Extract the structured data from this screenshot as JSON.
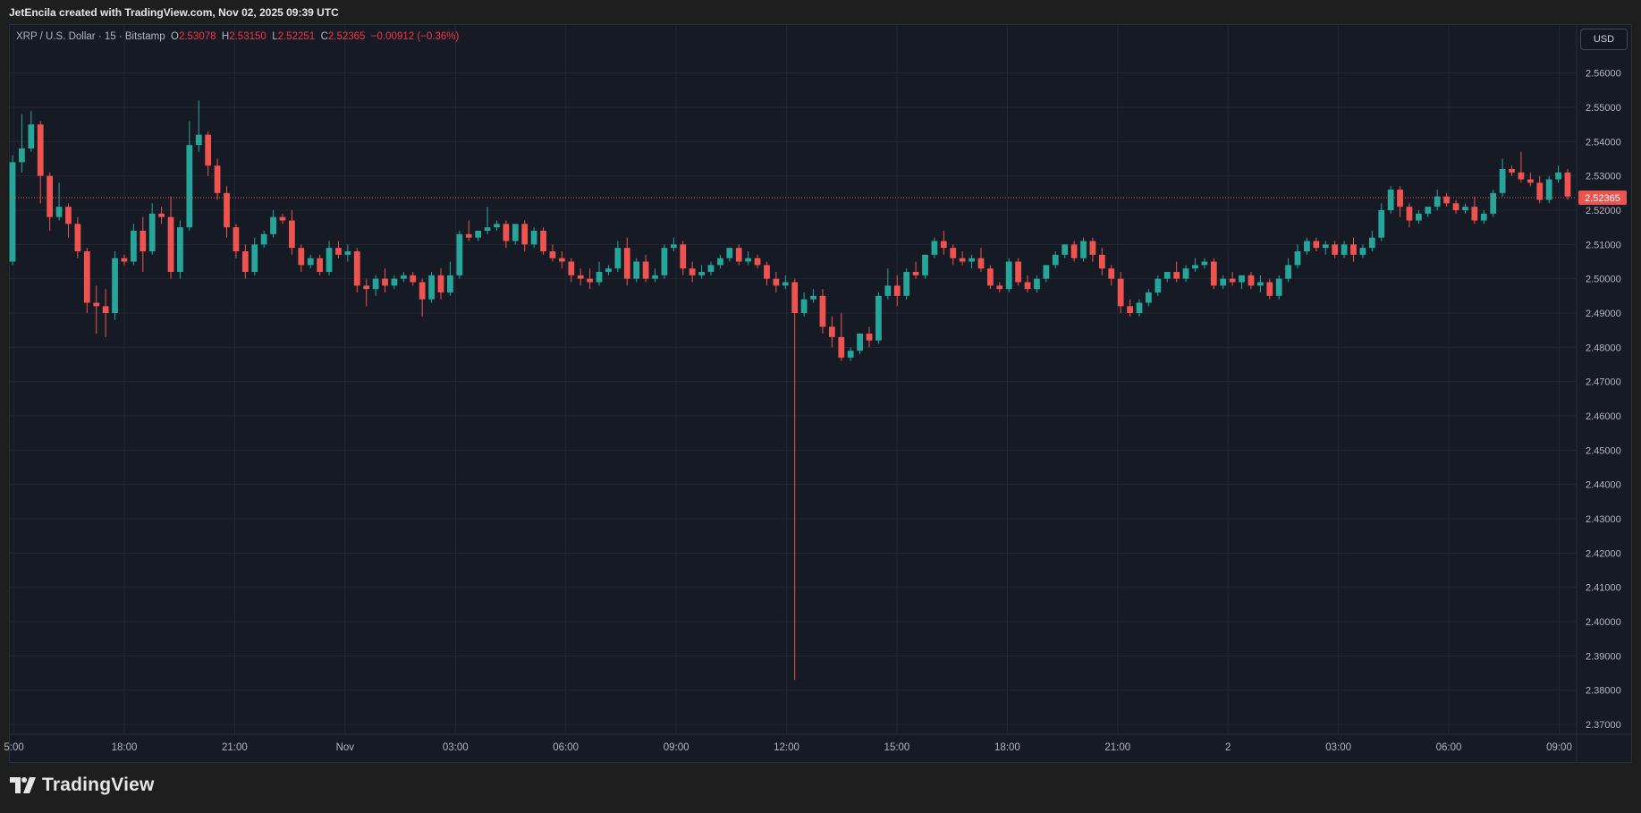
{
  "header": {
    "credit": "JetEncila created with TradingView.com, Nov 02, 2025 09:39 UTC"
  },
  "legend": {
    "symbol": "XRP / U.S. Dollar · 15 · Bitstamp",
    "open_label": "O",
    "open": "2.53078",
    "high_label": "H",
    "high": "2.53150",
    "low_label": "L",
    "low": "2.52251",
    "close_label": "C",
    "close": "2.52365",
    "change": "−0.00912 (−0.36%)"
  },
  "currency_button": "USD",
  "footer": {
    "brand": "TradingView",
    "logo_icon": "tradingview-logo-icon"
  },
  "colors": {
    "background": "#161a25",
    "up": "#26a69a",
    "down": "#ef5350",
    "grid": "#232734",
    "text": "#b2b5be"
  },
  "chart_data": {
    "type": "candlestick",
    "symbol": "XRP / U.S. Dollar",
    "interval": "15",
    "exchange": "Bitstamp",
    "current_price": 2.52365,
    "current_price_label": "2.52365",
    "ylim": [
      2.366,
      2.572
    ],
    "y_ticks": [
      "2.56000",
      "2.55000",
      "2.54000",
      "2.53000",
      "2.52000",
      "2.51000",
      "2.50000",
      "2.49000",
      "2.48000",
      "2.47000",
      "2.46000",
      "2.45000",
      "2.44000",
      "2.43000",
      "2.42000",
      "2.41000",
      "2.40000",
      "2.39000",
      "2.38000",
      "2.37000"
    ],
    "x_ticks": [
      {
        "label": "5:00",
        "hours": 15
      },
      {
        "label": "18:00",
        "hours": 18
      },
      {
        "label": "21:00",
        "hours": 21
      },
      {
        "label": "Nov",
        "hours": 24
      },
      {
        "label": "03:00",
        "hours": 27
      },
      {
        "label": "06:00",
        "hours": 30
      },
      {
        "label": "09:00",
        "hours": 33
      },
      {
        "label": "12:00",
        "hours": 36
      },
      {
        "label": "15:00",
        "hours": 39
      },
      {
        "label": "18:00",
        "hours": 42
      },
      {
        "label": "21:00",
        "hours": 45
      },
      {
        "label": "2",
        "hours": 48
      },
      {
        "label": "03:00",
        "hours": 51
      },
      {
        "label": "06:00",
        "hours": 54
      },
      {
        "label": "09:00",
        "hours": 57
      }
    ],
    "candles": [
      [
        2.505,
        2.536,
        2.534,
        2.504
      ],
      [
        2.534,
        2.548,
        2.538,
        2.531
      ],
      [
        2.538,
        2.549,
        2.545,
        2.537
      ],
      [
        2.545,
        2.546,
        2.53,
        2.522
      ],
      [
        2.53,
        2.531,
        2.518,
        2.514
      ],
      [
        2.518,
        2.528,
        2.521,
        2.517
      ],
      [
        2.521,
        2.522,
        2.516,
        2.512
      ],
      [
        2.516,
        2.518,
        2.508,
        2.506
      ],
      [
        2.508,
        2.509,
        2.493,
        2.49
      ],
      [
        2.493,
        2.498,
        2.492,
        2.484
      ],
      [
        2.492,
        2.497,
        2.49,
        2.483
      ],
      [
        2.49,
        2.508,
        2.506,
        2.488
      ],
      [
        2.506,
        2.507,
        2.505,
        2.504
      ],
      [
        2.505,
        2.516,
        2.514,
        2.504
      ],
      [
        2.514,
        2.518,
        2.508,
        2.502
      ],
      [
        2.508,
        2.522,
        2.519,
        2.507
      ],
      [
        2.519,
        2.521,
        2.518,
        2.516
      ],
      [
        2.518,
        2.524,
        2.502,
        2.5
      ],
      [
        2.502,
        2.517,
        2.515,
        2.5
      ],
      [
        2.515,
        2.546,
        2.539,
        2.514
      ],
      [
        2.539,
        2.552,
        2.542,
        2.537
      ],
      [
        2.542,
        2.543,
        2.533,
        2.53
      ],
      [
        2.533,
        2.535,
        2.525,
        2.523
      ],
      [
        2.525,
        2.527,
        2.515,
        2.512
      ],
      [
        2.515,
        2.516,
        2.508,
        2.506
      ],
      [
        2.508,
        2.51,
        2.502,
        2.5
      ],
      [
        2.502,
        2.512,
        2.51,
        2.501
      ],
      [
        2.51,
        2.514,
        2.513,
        2.509
      ],
      [
        2.513,
        2.52,
        2.518,
        2.512
      ],
      [
        2.518,
        2.519,
        2.517,
        2.516
      ],
      [
        2.517,
        2.52,
        2.509,
        2.507
      ],
      [
        2.509,
        2.51,
        2.504,
        2.502
      ],
      [
        2.504,
        2.507,
        2.506,
        2.503
      ],
      [
        2.506,
        2.507,
        2.502,
        2.501
      ],
      [
        2.502,
        2.511,
        2.509,
        2.501
      ],
      [
        2.509,
        2.511,
        2.507,
        2.506
      ],
      [
        2.507,
        2.51,
        2.508,
        2.505
      ],
      [
        2.508,
        2.509,
        2.498,
        2.496
      ],
      [
        2.498,
        2.5,
        2.497,
        2.492
      ],
      [
        2.497,
        2.501,
        2.5,
        2.495
      ],
      [
        2.5,
        2.503,
        2.498,
        2.496
      ],
      [
        2.498,
        2.501,
        2.5,
        2.497
      ],
      [
        2.5,
        2.502,
        2.501,
        2.499
      ],
      [
        2.501,
        2.502,
        2.499,
        2.498
      ],
      [
        2.499,
        2.5,
        2.494,
        2.489
      ],
      [
        2.494,
        2.502,
        2.501,
        2.493
      ],
      [
        2.501,
        2.503,
        2.496,
        2.494
      ],
      [
        2.496,
        2.505,
        2.501,
        2.495
      ],
      [
        2.501,
        2.514,
        2.513,
        2.5
      ],
      [
        2.513,
        2.517,
        2.512,
        2.511
      ],
      [
        2.512,
        2.514,
        2.514,
        2.511
      ],
      [
        2.514,
        2.521,
        2.515,
        2.513
      ],
      [
        2.515,
        2.517,
        2.516,
        2.514
      ],
      [
        2.516,
        2.517,
        2.511,
        2.509
      ],
      [
        2.511,
        2.512,
        2.516,
        2.51
      ],
      [
        2.516,
        2.517,
        2.51,
        2.508
      ],
      [
        2.51,
        2.515,
        2.514,
        2.509
      ],
      [
        2.514,
        2.515,
        2.508,
        2.507
      ],
      [
        2.508,
        2.51,
        2.506,
        2.505
      ],
      [
        2.506,
        2.508,
        2.505,
        2.503
      ],
      [
        2.505,
        2.506,
        2.501,
        2.499
      ],
      [
        2.501,
        2.503,
        2.5,
        2.498
      ],
      [
        2.5,
        2.503,
        2.499,
        2.497
      ],
      [
        2.499,
        2.505,
        2.502,
        2.498
      ],
      [
        2.502,
        2.504,
        2.503,
        2.501
      ],
      [
        2.503,
        2.511,
        2.509,
        2.502
      ],
      [
        2.509,
        2.512,
        2.5,
        2.498
      ],
      [
        2.5,
        2.506,
        2.505,
        2.499
      ],
      [
        2.505,
        2.507,
        2.5,
        2.499
      ],
      [
        2.5,
        2.503,
        2.501,
        2.499
      ],
      [
        2.501,
        2.51,
        2.509,
        2.5
      ],
      [
        2.509,
        2.512,
        2.51,
        2.508
      ],
      [
        2.51,
        2.511,
        2.503,
        2.501
      ],
      [
        2.503,
        2.505,
        2.501,
        2.499
      ],
      [
        2.501,
        2.504,
        2.502,
        2.5
      ],
      [
        2.502,
        2.505,
        2.504,
        2.501
      ],
      [
        2.504,
        2.507,
        2.506,
        2.503
      ],
      [
        2.506,
        2.509,
        2.509,
        2.505
      ],
      [
        2.509,
        2.51,
        2.505,
        2.504
      ],
      [
        2.505,
        2.508,
        2.506,
        2.504
      ],
      [
        2.506,
        2.507,
        2.504,
        2.503
      ],
      [
        2.504,
        2.505,
        2.5,
        2.498
      ],
      [
        2.5,
        2.502,
        2.498,
        2.496
      ],
      [
        2.498,
        2.501,
        2.499,
        2.497
      ],
      [
        2.499,
        2.5,
        2.49,
        2.383
      ],
      [
        2.49,
        2.496,
        2.494,
        2.489
      ],
      [
        2.494,
        2.497,
        2.495,
        2.493
      ],
      [
        2.495,
        2.497,
        2.486,
        2.484
      ],
      [
        2.486,
        2.489,
        2.483,
        2.48
      ],
      [
        2.483,
        2.49,
        2.477,
        2.476
      ],
      [
        2.477,
        2.48,
        2.479,
        2.476
      ],
      [
        2.479,
        2.484,
        2.484,
        2.478
      ],
      [
        2.484,
        2.486,
        2.482,
        2.48
      ],
      [
        2.482,
        2.496,
        2.495,
        2.481
      ],
      [
        2.495,
        2.503,
        2.498,
        2.494
      ],
      [
        2.498,
        2.501,
        2.495,
        2.492
      ],
      [
        2.495,
        2.503,
        2.502,
        2.494
      ],
      [
        2.502,
        2.505,
        2.501,
        2.5
      ],
      [
        2.501,
        2.507,
        2.507,
        2.5
      ],
      [
        2.507,
        2.512,
        2.511,
        2.506
      ],
      [
        2.511,
        2.514,
        2.509,
        2.507
      ],
      [
        2.509,
        2.51,
        2.506,
        2.504
      ],
      [
        2.506,
        2.508,
        2.505,
        2.504
      ],
      [
        2.505,
        2.507,
        2.506,
        2.503
      ],
      [
        2.506,
        2.509,
        2.503,
        2.502
      ],
      [
        2.503,
        2.504,
        2.498,
        2.497
      ],
      [
        2.498,
        2.499,
        2.497,
        2.496
      ],
      [
        2.497,
        2.506,
        2.505,
        2.496
      ],
      [
        2.505,
        2.506,
        2.499,
        2.498
      ],
      [
        2.499,
        2.501,
        2.497,
        2.496
      ],
      [
        2.497,
        2.501,
        2.5,
        2.496
      ],
      [
        2.5,
        2.504,
        2.504,
        2.499
      ],
      [
        2.504,
        2.508,
        2.507,
        2.503
      ],
      [
        2.507,
        2.51,
        2.51,
        2.506
      ],
      [
        2.51,
        2.511,
        2.506,
        2.505
      ],
      [
        2.506,
        2.512,
        2.511,
        2.505
      ],
      [
        2.511,
        2.512,
        2.507,
        2.505
      ],
      [
        2.507,
        2.509,
        2.503,
        2.501
      ],
      [
        2.503,
        2.504,
        2.5,
        2.498
      ],
      [
        2.5,
        2.502,
        2.492,
        2.49
      ],
      [
        2.492,
        2.494,
        2.49,
        2.489
      ],
      [
        2.49,
        2.494,
        2.493,
        2.489
      ],
      [
        2.493,
        2.497,
        2.496,
        2.492
      ],
      [
        2.496,
        2.501,
        2.5,
        2.495
      ],
      [
        2.5,
        2.502,
        2.502,
        2.499
      ],
      [
        2.502,
        2.505,
        2.5,
        2.499
      ],
      [
        2.5,
        2.504,
        2.503,
        2.499
      ],
      [
        2.503,
        2.506,
        2.504,
        2.502
      ],
      [
        2.504,
        2.506,
        2.505,
        2.503
      ],
      [
        2.505,
        2.506,
        2.498,
        2.497
      ],
      [
        2.498,
        2.501,
        2.5,
        2.497
      ],
      [
        2.5,
        2.502,
        2.499,
        2.498
      ],
      [
        2.499,
        2.501,
        2.501,
        2.497
      ],
      [
        2.501,
        2.502,
        2.498,
        2.497
      ],
      [
        2.498,
        2.501,
        2.499,
        2.496
      ],
      [
        2.499,
        2.5,
        2.495,
        2.494
      ],
      [
        2.495,
        2.501,
        2.5,
        2.494
      ],
      [
        2.5,
        2.506,
        2.504,
        2.499
      ],
      [
        2.504,
        2.51,
        2.508,
        2.503
      ],
      [
        2.508,
        2.512,
        2.511,
        2.507
      ],
      [
        2.511,
        2.512,
        2.509,
        2.508
      ],
      [
        2.509,
        2.511,
        2.51,
        2.507
      ],
      [
        2.51,
        2.511,
        2.507,
        2.506
      ],
      [
        2.507,
        2.511,
        2.51,
        2.506
      ],
      [
        2.51,
        2.512,
        2.507,
        2.505
      ],
      [
        2.507,
        2.51,
        2.509,
        2.506
      ],
      [
        2.509,
        2.514,
        2.512,
        2.508
      ],
      [
        2.512,
        2.522,
        2.52,
        2.511
      ],
      [
        2.52,
        2.527,
        2.526,
        2.519
      ],
      [
        2.526,
        2.527,
        2.521,
        2.518
      ],
      [
        2.521,
        2.522,
        2.517,
        2.515
      ],
      [
        2.517,
        2.52,
        2.519,
        2.516
      ],
      [
        2.519,
        2.521,
        2.521,
        2.518
      ],
      [
        2.521,
        2.526,
        2.524,
        2.52
      ],
      [
        2.524,
        2.525,
        2.522,
        2.521
      ],
      [
        2.522,
        2.523,
        2.52,
        2.519
      ],
      [
        2.52,
        2.522,
        2.521,
        2.519
      ],
      [
        2.521,
        2.524,
        2.517,
        2.516
      ],
      [
        2.517,
        2.52,
        2.519,
        2.516
      ],
      [
        2.519,
        2.526,
        2.525,
        2.518
      ],
      [
        2.525,
        2.535,
        2.532,
        2.524
      ],
      [
        2.532,
        2.533,
        2.531,
        2.53
      ],
      [
        2.531,
        2.537,
        2.529,
        2.528
      ],
      [
        2.529,
        2.531,
        2.528,
        2.527
      ],
      [
        2.528,
        2.53,
        2.523,
        2.522
      ],
      [
        2.523,
        2.53,
        2.529,
        2.522
      ],
      [
        2.529,
        2.533,
        2.531,
        2.528
      ],
      [
        2.531,
        2.532,
        2.524,
        2.523
      ]
    ],
    "grid": true,
    "price_line": "dotted"
  }
}
